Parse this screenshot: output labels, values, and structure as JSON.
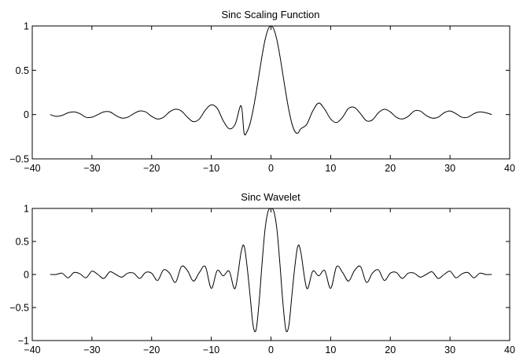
{
  "chart_data": [
    {
      "type": "line",
      "title": "Sinc Scaling Function",
      "xlabel": "",
      "ylabel": "",
      "xlim": [
        -40,
        40
      ],
      "ylim": [
        -0.5,
        1
      ],
      "x_ticks": [
        -40,
        -30,
        -20,
        -10,
        0,
        10,
        20,
        30,
        40
      ],
      "x_tick_labels": [
        "−40",
        "−30",
        "−20",
        "−10",
        "0",
        "10",
        "20",
        "30",
        "40"
      ],
      "y_ticks": [
        -0.5,
        0,
        0.5,
        1
      ],
      "y_tick_labels": [
        "−0.5",
        "0",
        "0.5",
        "1"
      ],
      "grid": false,
      "legend": "none",
      "line_color": "#000000",
      "series": [
        {
          "x": [
            -37,
            -36,
            -35,
            -34,
            -33,
            -32,
            -31,
            -30,
            -29,
            -28,
            -27,
            -26,
            -25,
            -24,
            -23,
            -22,
            -21,
            -20,
            -19,
            -18,
            -17,
            -16,
            -15,
            -14,
            -13,
            -12,
            -11,
            -10,
            -9,
            -8,
            -7,
            -6,
            -5,
            -4.5,
            -4,
            -3.5,
            -3,
            -2.5,
            -2,
            -1.5,
            -1,
            -0.5,
            0,
            0.5,
            1,
            1.5,
            2,
            2.5,
            3,
            3.5,
            4,
            4.5,
            5,
            6,
            7,
            8,
            9,
            10,
            11,
            12,
            13,
            14,
            15,
            16,
            17,
            18,
            19,
            20,
            21,
            22,
            23,
            24,
            25,
            26,
            27,
            28,
            29,
            30,
            31,
            32,
            33,
            34,
            35,
            36,
            37
          ],
          "y": [
            0.0,
            -0.02,
            -0.01,
            0.02,
            0.03,
            0.01,
            -0.03,
            -0.03,
            0.0,
            0.03,
            0.03,
            -0.01,
            -0.04,
            -0.03,
            0.01,
            0.04,
            0.03,
            -0.02,
            -0.05,
            -0.03,
            0.03,
            0.06,
            0.04,
            -0.03,
            -0.08,
            -0.05,
            0.05,
            0.11,
            0.07,
            -0.07,
            -0.16,
            -0.11,
            0.1,
            -0.21,
            -0.19,
            -0.1,
            0.05,
            0.24,
            0.45,
            0.66,
            0.84,
            0.96,
            1.0,
            0.96,
            0.84,
            0.66,
            0.45,
            0.24,
            0.05,
            -0.1,
            -0.19,
            -0.21,
            -0.16,
            -0.11,
            0.04,
            0.13,
            0.06,
            -0.05,
            -0.09,
            -0.03,
            0.07,
            0.08,
            0.01,
            -0.07,
            -0.06,
            0.02,
            0.06,
            0.03,
            -0.03,
            -0.05,
            -0.02,
            0.04,
            0.04,
            -0.01,
            -0.04,
            -0.03,
            0.02,
            0.04,
            0.01,
            -0.03,
            -0.03,
            0.01,
            0.03,
            0.02,
            0.0
          ]
        }
      ]
    },
    {
      "type": "line",
      "title": "Sinc Wavelet",
      "xlabel": "",
      "ylabel": "",
      "xlim": [
        -40,
        40
      ],
      "ylim": [
        -1,
        1
      ],
      "x_ticks": [
        -40,
        -30,
        -20,
        -10,
        0,
        10,
        20,
        30,
        40
      ],
      "x_tick_labels": [
        "−40",
        "−30",
        "−20",
        "−10",
        "0",
        "10",
        "20",
        "30",
        "40"
      ],
      "y_ticks": [
        -1,
        -0.5,
        0,
        0.5,
        1
      ],
      "y_tick_labels": [
        "−1",
        "−0.5",
        "0",
        "0.5",
        "1"
      ],
      "grid": false,
      "legend": "none",
      "line_color": "#000000",
      "series": [
        {
          "x": [
            -37,
            -36,
            -35,
            -34,
            -33,
            -32,
            -31,
            -30,
            -29,
            -28,
            -27,
            -26,
            -25,
            -24,
            -23,
            -22,
            -21,
            -20,
            -19,
            -18,
            -17,
            -16,
            -15,
            -14,
            -13,
            -12,
            -11,
            -10,
            -9,
            -8,
            -7,
            -6,
            -5,
            -4.5,
            -4,
            -3.5,
            -3,
            -2.5,
            -2,
            -1.5,
            -1,
            -0.5,
            0,
            0.5,
            1,
            1.5,
            2,
            2.5,
            3,
            3.5,
            4,
            4.5,
            5,
            6,
            7,
            8,
            9,
            10,
            11,
            12,
            13,
            14,
            15,
            16,
            17,
            18,
            19,
            20,
            21,
            22,
            23,
            24,
            25,
            26,
            27,
            28,
            29,
            30,
            31,
            32,
            33,
            34,
            35,
            36,
            37
          ],
          "y": [
            0.0,
            0.0,
            0.02,
            -0.05,
            0.03,
            0.01,
            -0.05,
            0.05,
            0.0,
            -0.06,
            0.04,
            0.0,
            -0.04,
            0.02,
            0.02,
            -0.06,
            0.03,
            0.02,
            -0.09,
            0.07,
            0.02,
            -0.12,
            0.12,
            0.06,
            -0.1,
            0.03,
            0.12,
            -0.21,
            0.06,
            -0.02,
            0.05,
            -0.21,
            0.34,
            0.43,
            0.12,
            -0.32,
            -0.77,
            -0.84,
            -0.43,
            0.16,
            0.68,
            0.95,
            1.0,
            0.95,
            0.68,
            0.16,
            -0.43,
            -0.84,
            -0.77,
            -0.32,
            0.12,
            0.43,
            0.34,
            -0.21,
            0.05,
            -0.02,
            0.06,
            -0.21,
            0.12,
            0.03,
            -0.1,
            0.06,
            0.12,
            -0.12,
            0.02,
            0.07,
            -0.09,
            0.02,
            0.03,
            -0.06,
            0.02,
            0.02,
            -0.04,
            0.0,
            0.04,
            -0.06,
            0.0,
            0.05,
            -0.05,
            0.01,
            0.03,
            -0.05,
            0.02,
            0.0,
            0.0
          ]
        }
      ]
    }
  ]
}
